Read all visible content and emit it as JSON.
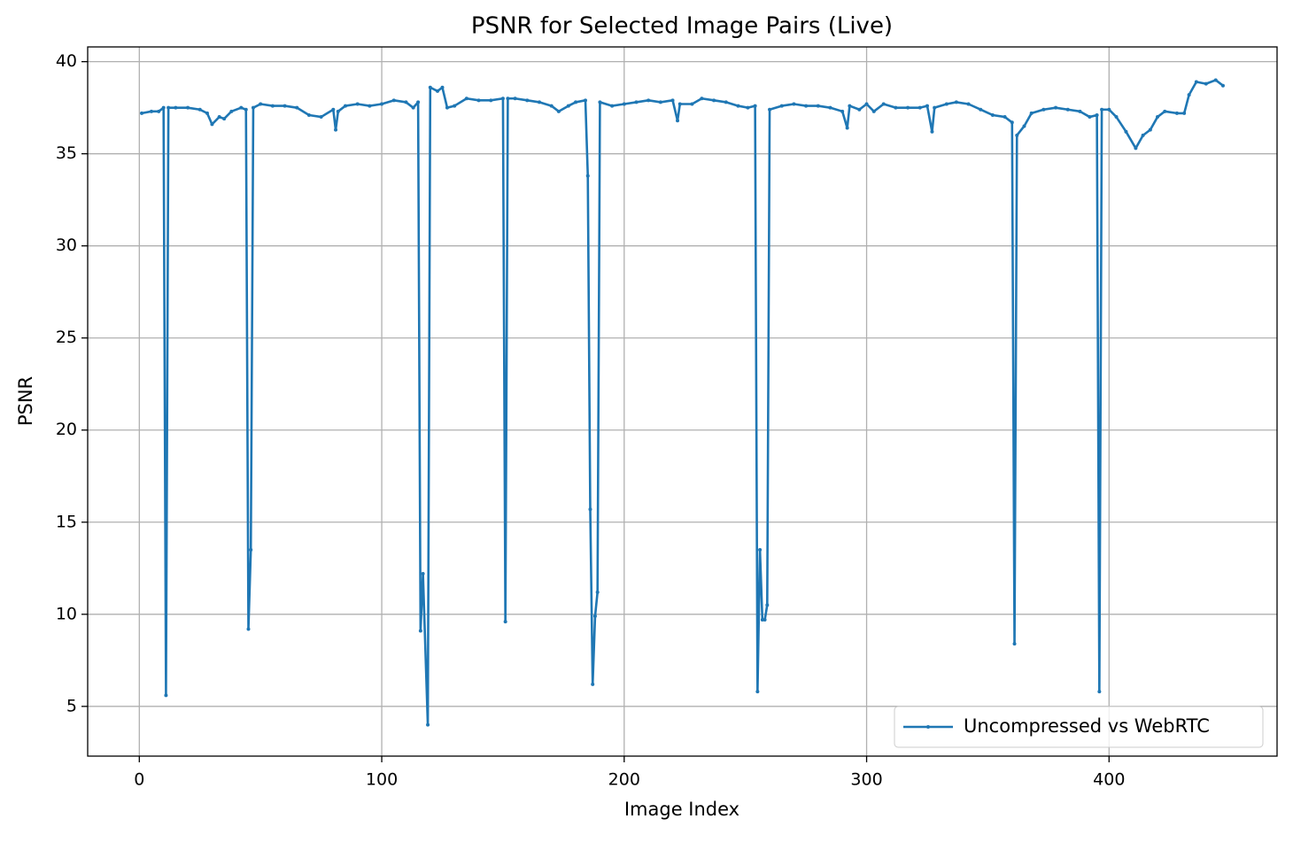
{
  "chart_data": {
    "type": "line",
    "title": "PSNR for Selected Image Pairs (Live)",
    "x_label": "Image Index",
    "y_label": "PSNR",
    "x": [
      1,
      5,
      8,
      10,
      11,
      12,
      15,
      20,
      25,
      28,
      30,
      33,
      35,
      38,
      42,
      44,
      45,
      46,
      47,
      50,
      55,
      60,
      65,
      70,
      75,
      80,
      81,
      82,
      85,
      90,
      95,
      100,
      105,
      110,
      113,
      115,
      116,
      117,
      119,
      120,
      123,
      125,
      127,
      130,
      135,
      140,
      145,
      150,
      151,
      152,
      155,
      160,
      165,
      170,
      173,
      177,
      180,
      184,
      185,
      186,
      187,
      188,
      189,
      190,
      195,
      200,
      205,
      210,
      215,
      220,
      222,
      223,
      228,
      232,
      237,
      242,
      247,
      251,
      254,
      255,
      256,
      257,
      258,
      259,
      260,
      265,
      270,
      275,
      280,
      285,
      290,
      292,
      293,
      297,
      300,
      303,
      307,
      312,
      317,
      322,
      325,
      327,
      328,
      333,
      337,
      342,
      347,
      352,
      357,
      360,
      361,
      362,
      365,
      368,
      373,
      378,
      383,
      388,
      392,
      395,
      396,
      397,
      400,
      403,
      407,
      411,
      414,
      417,
      420,
      423,
      428,
      431,
      433,
      436,
      440,
      444,
      447
    ],
    "series": [
      {
        "name": "Uncompressed vs WebRTC",
        "color": "#1f77b4",
        "values": [
          37.2,
          37.3,
          37.3,
          37.5,
          5.6,
          37.5,
          37.5,
          37.5,
          37.4,
          37.2,
          36.6,
          37.0,
          36.9,
          37.3,
          37.5,
          37.4,
          9.2,
          13.5,
          37.5,
          37.7,
          37.6,
          37.6,
          37.5,
          37.1,
          37.0,
          37.4,
          36.3,
          37.3,
          37.6,
          37.7,
          37.6,
          37.7,
          37.9,
          37.8,
          37.5,
          37.8,
          9.1,
          12.2,
          4.0,
          38.6,
          38.4,
          38.6,
          37.5,
          37.6,
          38.0,
          37.9,
          37.9,
          38.0,
          9.6,
          38.0,
          38.0,
          37.9,
          37.8,
          37.6,
          37.3,
          37.6,
          37.8,
          37.9,
          33.8,
          15.7,
          6.2,
          9.9,
          11.2,
          37.8,
          37.6,
          37.7,
          37.8,
          37.9,
          37.8,
          37.9,
          36.8,
          37.7,
          37.7,
          38.0,
          37.9,
          37.8,
          37.6,
          37.5,
          37.6,
          5.8,
          13.5,
          9.7,
          9.7,
          10.5,
          37.4,
          37.6,
          37.7,
          37.6,
          37.6,
          37.5,
          37.3,
          36.4,
          37.6,
          37.4,
          37.7,
          37.3,
          37.7,
          37.5,
          37.5,
          37.5,
          37.6,
          36.2,
          37.5,
          37.7,
          37.8,
          37.7,
          37.4,
          37.1,
          37.0,
          36.7,
          8.4,
          36.0,
          36.5,
          37.2,
          37.4,
          37.5,
          37.4,
          37.3,
          37.0,
          37.1,
          5.8,
          37.4,
          37.4,
          37.0,
          36.2,
          35.3,
          36.0,
          36.3,
          37.0,
          37.3,
          37.2,
          37.2,
          38.2,
          38.9,
          38.8,
          39.0,
          38.7
        ]
      }
    ],
    "xlim": [
      -21.3,
      469.3
    ],
    "ylim": [
      2.3,
      40.8
    ],
    "xticks": [
      0,
      100,
      200,
      300,
      400
    ],
    "yticks": [
      5,
      10,
      15,
      20,
      25,
      30,
      35,
      40
    ],
    "grid": true,
    "legend": "lower right"
  }
}
